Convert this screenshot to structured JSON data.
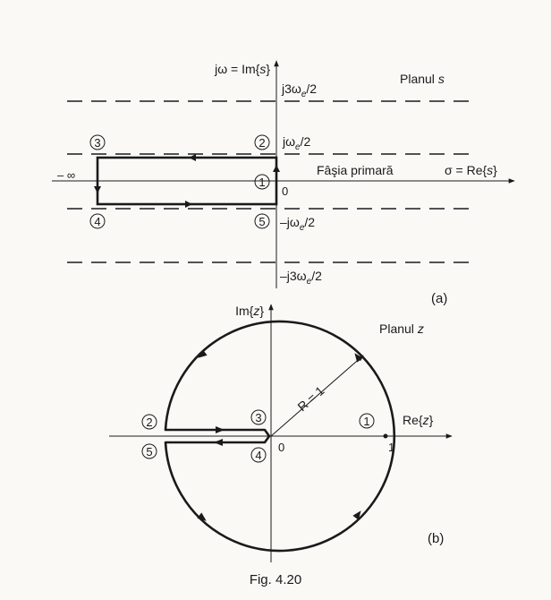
{
  "background_color": "#faf9f6",
  "ink_color": "#1a1a1a",
  "panel_a": {
    "axis_y_label_pre": "jω = Im{",
    "axis_y_label_var": "s",
    "axis_y_label_post": "}",
    "plane_title": "Planul ",
    "plane_title_var": "s",
    "strip_label": "Fâşia primară",
    "axis_x_label_pre": "σ = Re{",
    "axis_x_label_var": "s",
    "axis_x_label_post": "}",
    "minus_infinity": "– ∞",
    "origin": "0",
    "tick_j3we2_pre": "j3ω",
    "tick_j3we2_sub": "e",
    "tick_j3we2_post": "/2",
    "tick_jwe2_pre": "jω",
    "tick_jwe2_sub": "e",
    "tick_jwe2_post": "/2",
    "tick_mjwe2_pre": "–jω",
    "tick_mjwe2_sub": "e",
    "tick_mjwe2_post": "/2",
    "tick_mj3we2_pre": "–j3ω",
    "tick_mj3we2_sub": "e",
    "tick_mj3we2_post": "/2",
    "markers": {
      "m1": "1",
      "m2": "2",
      "m3": "3",
      "m4": "4",
      "m5": "5"
    },
    "panel_label": "(a)"
  },
  "panel_b": {
    "axis_y_label_pre": "Im{",
    "axis_y_label_var": "z",
    "axis_y_label_post": "}",
    "plane_title": "Planul ",
    "plane_title_var": "z",
    "radius_label": "R = 1",
    "axis_x_label_pre": "Re{",
    "axis_x_label_var": "z",
    "axis_x_label_post": "}",
    "origin": "0",
    "unit_tick": "1",
    "markers": {
      "m1": "1",
      "m2": "2",
      "m3": "3",
      "m4": "4",
      "m5": "5"
    },
    "panel_label": "(b)"
  },
  "caption": "Fig. 4.20"
}
